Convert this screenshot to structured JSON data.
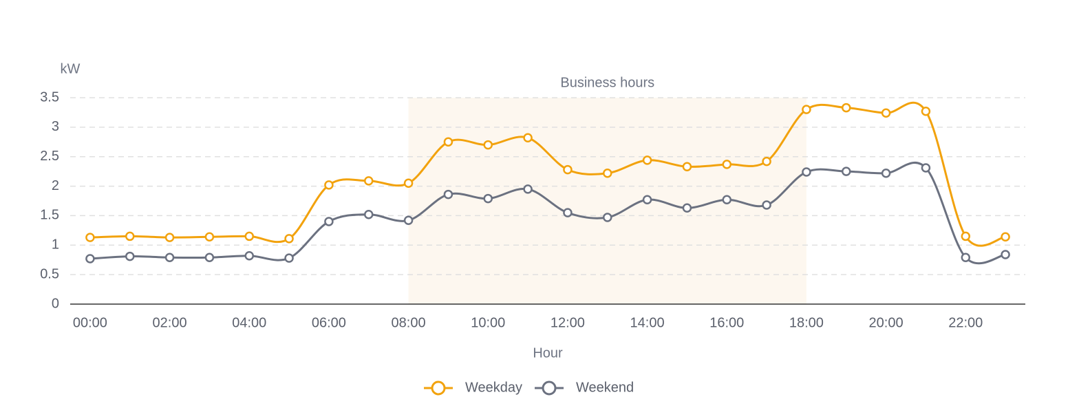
{
  "chart_data": {
    "type": "line",
    "y_axis_name": "kW",
    "x_axis_name": "Hour",
    "categories": [
      "00:00",
      null,
      "02:00",
      null,
      "04:00",
      null,
      "06:00",
      null,
      "08:00",
      null,
      "10:00",
      null,
      "12:00",
      null,
      "14:00",
      null,
      "16:00",
      null,
      "18:00",
      null,
      "20:00",
      null,
      "22:00",
      null
    ],
    "series": [
      {
        "name": "Weekday",
        "color": "#f2a20d",
        "values": [
          1.13,
          1.15,
          1.13,
          1.14,
          1.15,
          1.11,
          2.02,
          2.09,
          2.05,
          2.75,
          2.7,
          2.82,
          2.28,
          2.22,
          2.44,
          2.33,
          2.37,
          2.42,
          3.3,
          3.33,
          3.24,
          3.27,
          1.15,
          1.14
        ]
      },
      {
        "name": "Weekend",
        "color": "#6b7180",
        "values": [
          0.77,
          0.81,
          0.79,
          0.79,
          0.82,
          0.78,
          1.4,
          1.52,
          1.42,
          1.86,
          1.79,
          1.95,
          1.55,
          1.47,
          1.77,
          1.63,
          1.77,
          1.68,
          2.24,
          2.25,
          2.22,
          2.31,
          0.79,
          0.84
        ]
      }
    ],
    "ylim": [
      0,
      3.5
    ],
    "yticks": [
      0,
      0.5,
      1,
      1.5,
      2,
      2.5,
      3,
      3.5
    ],
    "grid": true,
    "smooth": true,
    "legend_position": "bottom",
    "mark_area": {
      "label": "Business hours",
      "from_index": 8,
      "to_index": 18,
      "color": "#fdf7ef"
    }
  }
}
